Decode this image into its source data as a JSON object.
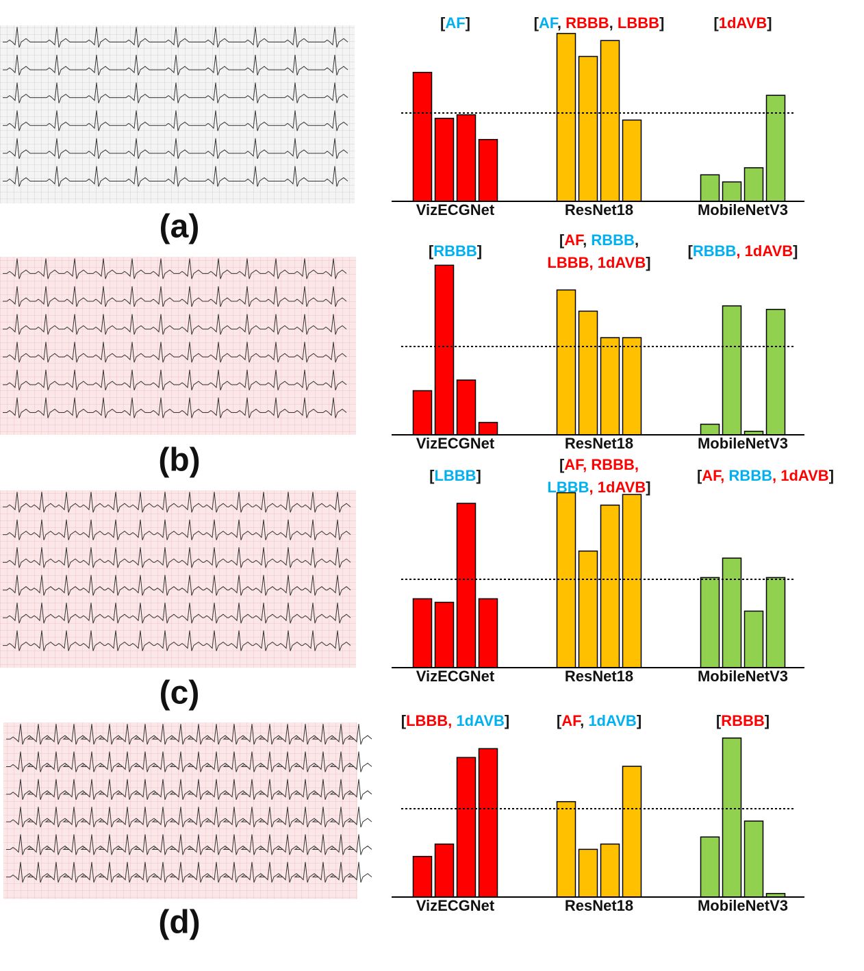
{
  "chart_data": [
    {
      "type": "bar",
      "panel_label": "(a)",
      "ylim": [
        0,
        1
      ],
      "threshold": 0.5,
      "groups": [
        {
          "name": "VizECGNet",
          "color": "#ff0000",
          "values": [
            0.73,
            0.47,
            0.49,
            0.35
          ],
          "annotation": [
            [
              {
                "text": "[",
                "color": "#1a1a1a"
              },
              {
                "text": "AF",
                "color": "#00b0f0"
              },
              {
                "text": "]",
                "color": "#1a1a1a"
              }
            ]
          ]
        },
        {
          "name": "ResNet18",
          "color": "#ffc000",
          "values": [
            0.95,
            0.82,
            0.91,
            0.46
          ],
          "annotation": [
            [
              {
                "text": "[",
                "color": "#1a1a1a"
              },
              {
                "text": "AF",
                "color": "#00b0f0"
              },
              {
                "text": ", ",
                "color": "#1a1a1a"
              },
              {
                "text": "RBBB",
                "color": "#ff0000"
              },
              {
                "text": ", ",
                "color": "#1a1a1a"
              },
              {
                "text": "LBBB",
                "color": "#ff0000"
              },
              {
                "text": "]",
                "color": "#1a1a1a"
              }
            ]
          ]
        },
        {
          "name": "MobileNetV3",
          "color": "#92d050",
          "values": [
            0.15,
            0.11,
            0.19,
            0.6
          ],
          "annotation": [
            [
              {
                "text": "[",
                "color": "#1a1a1a"
              },
              {
                "text": "1dAVB",
                "color": "#ff0000"
              },
              {
                "text": "]",
                "color": "#1a1a1a"
              }
            ]
          ]
        }
      ]
    },
    {
      "type": "bar",
      "panel_label": "(b)",
      "ylim": [
        0,
        1
      ],
      "threshold": 0.5,
      "groups": [
        {
          "name": "VizECGNet",
          "color": "#ff0000",
          "values": [
            0.25,
            0.96,
            0.31,
            0.07
          ],
          "annotation": [
            [
              {
                "text": "[",
                "color": "#1a1a1a"
              },
              {
                "text": "RBBB",
                "color": "#00b0f0"
              },
              {
                "text": "]",
                "color": "#1a1a1a"
              }
            ]
          ]
        },
        {
          "name": "ResNet18",
          "color": "#ffc000",
          "values": [
            0.82,
            0.7,
            0.55,
            0.55
          ],
          "annotation": [
            [
              {
                "text": "[",
                "color": "#1a1a1a"
              },
              {
                "text": "AF",
                "color": "#ff0000"
              },
              {
                "text": ", ",
                "color": "#1a1a1a"
              },
              {
                "text": "RBBB",
                "color": "#00b0f0"
              },
              {
                "text": ",",
                "color": "#1a1a1a"
              }
            ],
            [
              {
                "text": "LBBB, 1dAVB",
                "color": "#ff0000"
              },
              {
                "text": "]",
                "color": "#1a1a1a"
              }
            ]
          ]
        },
        {
          "name": "MobileNetV3",
          "color": "#92d050",
          "values": [
            0.06,
            0.73,
            0.02,
            0.71
          ],
          "annotation": [
            [
              {
                "text": "[",
                "color": "#1a1a1a"
              },
              {
                "text": "RBBB",
                "color": "#00b0f0"
              },
              {
                "text": ", 1dAVB",
                "color": "#ff0000"
              },
              {
                "text": "]",
                "color": "#1a1a1a"
              }
            ]
          ]
        }
      ]
    },
    {
      "type": "bar",
      "panel_label": "(c)",
      "ylim": [
        0,
        1
      ],
      "threshold": 0.5,
      "groups": [
        {
          "name": "VizECGNet",
          "color": "#ff0000",
          "values": [
            0.39,
            0.37,
            0.93,
            0.39
          ],
          "annotation": [
            [
              {
                "text": "[",
                "color": "#1a1a1a"
              },
              {
                "text": "LBBB",
                "color": "#00b0f0"
              },
              {
                "text": "]",
                "color": "#1a1a1a"
              }
            ]
          ]
        },
        {
          "name": "ResNet18",
          "color": "#ffc000",
          "values": [
            0.99,
            0.66,
            0.92,
            0.98
          ],
          "annotation": [
            [
              {
                "text": "[",
                "color": "#1a1a1a"
              },
              {
                "text": "AF, RBBB,",
                "color": "#ff0000"
              }
            ],
            [
              {
                "text": "LBBB",
                "color": "#00b0f0"
              },
              {
                "text": ", 1dAVB",
                "color": "#ff0000"
              },
              {
                "text": "]",
                "color": "#1a1a1a"
              }
            ]
          ]
        },
        {
          "name": "MobileNetV3",
          "color": "#92d050",
          "values": [
            0.51,
            0.62,
            0.32,
            0.51
          ],
          "annotation": [
            [
              {
                "text": "[",
                "color": "#1a1a1a"
              },
              {
                "text": "AF, ",
                "color": "#ff0000"
              },
              {
                "text": "RBBB",
                "color": "#00b0f0"
              },
              {
                "text": ", 1dAVB",
                "color": "#ff0000"
              },
              {
                "text": "]",
                "color": "#1a1a1a"
              }
            ]
          ]
        }
      ]
    },
    {
      "type": "bar",
      "panel_label": "(d)",
      "ylim": [
        0,
        1
      ],
      "threshold": 0.5,
      "groups": [
        {
          "name": "VizECGNet",
          "color": "#ff0000",
          "values": [
            0.23,
            0.3,
            0.79,
            0.84
          ],
          "annotation": [
            [
              {
                "text": "[",
                "color": "#1a1a1a"
              },
              {
                "text": "LBBB, ",
                "color": "#ff0000"
              },
              {
                "text": "1dAVB",
                "color": "#00b0f0"
              },
              {
                "text": "]",
                "color": "#1a1a1a"
              }
            ]
          ]
        },
        {
          "name": "ResNet18",
          "color": "#ffc000",
          "values": [
            0.54,
            0.27,
            0.3,
            0.74
          ],
          "annotation": [
            [
              {
                "text": "[",
                "color": "#1a1a1a"
              },
              {
                "text": "AF",
                "color": "#ff0000"
              },
              {
                "text": ", ",
                "color": "#1a1a1a"
              },
              {
                "text": "1dAVB",
                "color": "#00b0f0"
              },
              {
                "text": "]",
                "color": "#1a1a1a"
              }
            ]
          ]
        },
        {
          "name": "MobileNetV3",
          "color": "#92d050",
          "values": [
            0.34,
            0.9,
            0.43,
            0.02
          ],
          "annotation": [
            [
              {
                "text": "[",
                "color": "#1a1a1a"
              },
              {
                "text": "RBBB",
                "color": "#ff0000"
              },
              {
                "text": "]",
                "color": "#1a1a1a"
              }
            ]
          ]
        }
      ]
    }
  ]
}
